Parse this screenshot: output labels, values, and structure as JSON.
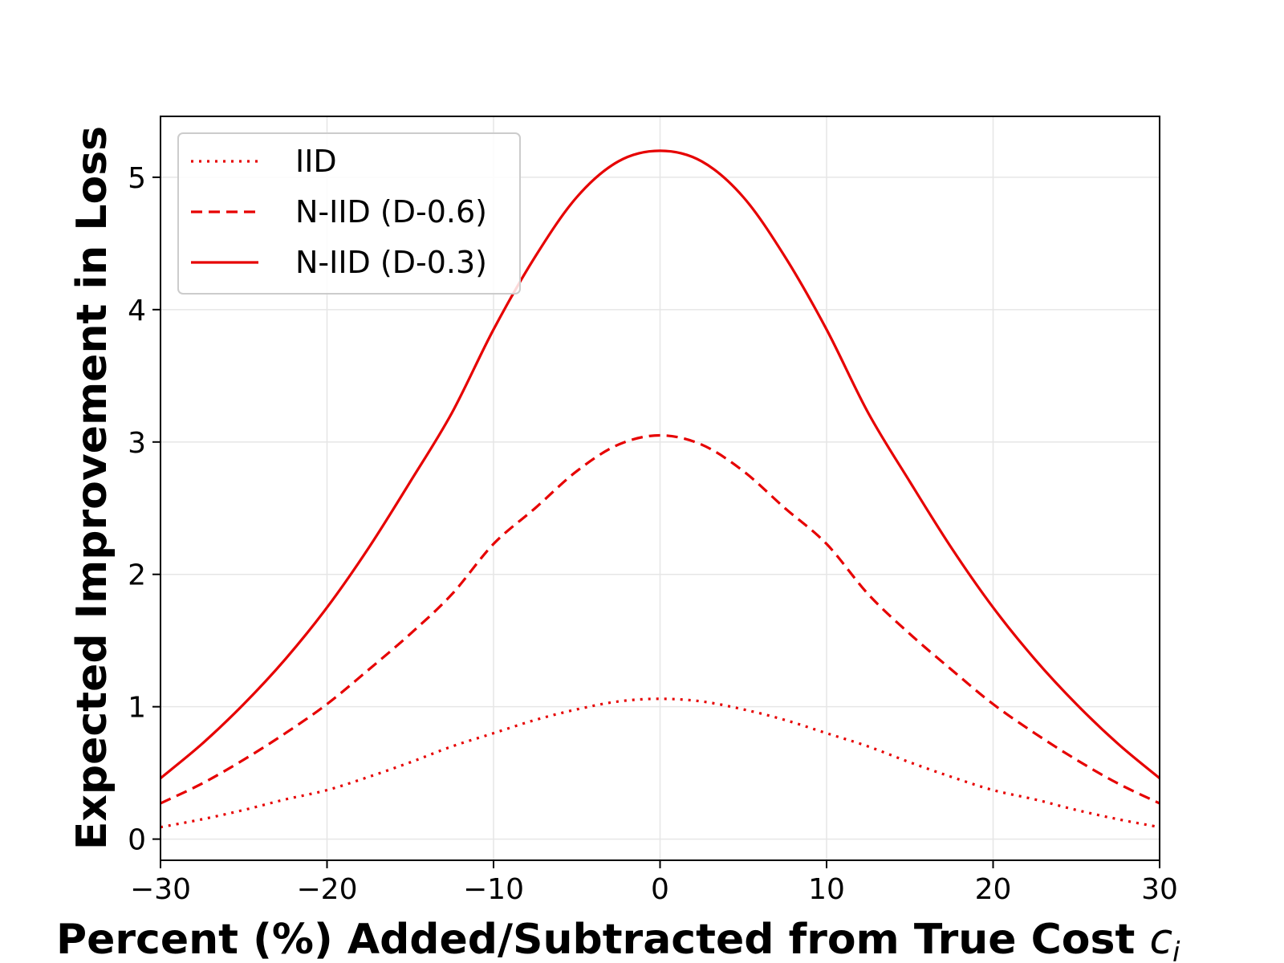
{
  "chart_data": {
    "type": "line",
    "title": "",
    "xlabel": "Percent (%) Added/Subtracted from True Cost",
    "xlabel_symbol": "c",
    "xlabel_subscript": "i",
    "ylabel": "Expected Improvement in Loss",
    "xlim": [
      -30,
      30
    ],
    "ylim": [
      -0.16,
      5.46
    ],
    "xticks": [
      -30,
      -20,
      -10,
      0,
      10,
      20,
      30
    ],
    "xtick_labels": [
      "−30",
      "−20",
      "−10",
      "0",
      "10",
      "20",
      "30"
    ],
    "yticks": [
      0,
      1,
      2,
      3,
      4,
      5
    ],
    "ytick_labels": [
      "0",
      "1",
      "2",
      "3",
      "4",
      "5"
    ],
    "grid": true,
    "legend_position": "top-left",
    "x": [
      -30,
      -27.5,
      -25,
      -22.5,
      -20,
      -17.5,
      -15,
      -12.5,
      -10,
      -7.5,
      -5,
      -2.5,
      0,
      2.5,
      5,
      7.5,
      10,
      12.5,
      15,
      17.5,
      20,
      22.5,
      25,
      27.5,
      30
    ],
    "series": [
      {
        "name": "IID",
        "style": "dotted",
        "color": "#e60000",
        "values": [
          0.09,
          0.15,
          0.22,
          0.3,
          0.37,
          0.47,
          0.58,
          0.7,
          0.8,
          0.9,
          0.98,
          1.04,
          1.06,
          1.04,
          0.98,
          0.9,
          0.8,
          0.7,
          0.58,
          0.47,
          0.37,
          0.3,
          0.22,
          0.15,
          0.09
        ]
      },
      {
        "name": "N-IID (D-0.6)",
        "style": "dashed",
        "color": "#e60000",
        "values": [
          0.27,
          0.42,
          0.6,
          0.8,
          1.02,
          1.28,
          1.55,
          1.85,
          2.23,
          2.5,
          2.78,
          2.98,
          3.05,
          2.98,
          2.78,
          2.5,
          2.23,
          1.85,
          1.55,
          1.28,
          1.02,
          0.8,
          0.6,
          0.42,
          0.27
        ]
      },
      {
        "name": "N-IID (D-0.3)",
        "style": "solid",
        "color": "#e60000",
        "values": [
          0.46,
          0.72,
          1.02,
          1.36,
          1.75,
          2.2,
          2.7,
          3.22,
          3.85,
          4.4,
          4.85,
          5.12,
          5.2,
          5.12,
          4.85,
          4.4,
          3.85,
          3.22,
          2.7,
          2.2,
          1.75,
          1.36,
          1.02,
          0.72,
          0.46
        ]
      }
    ]
  }
}
